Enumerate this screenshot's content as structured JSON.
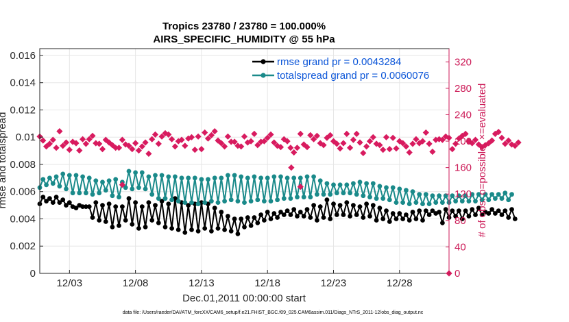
{
  "chart_data": {
    "type": "line",
    "title": "Tropics 23780 / 23780 = 100.000%",
    "subtitle": "AIRS_SPECIFIC_HUMIDITY @ 55 hPa",
    "xlabel": "Dec.01,2011 00:00:00 start",
    "ylabel": "rmse and totalspread",
    "ylabel_right": "# of obs: o=possible; ×=evaluated",
    "footer": "data file: /Users/raeder/DAI/ATM_forcXX/CAM6_setup/f.e21.FHIST_BGC.f09_025.CAM6assim.011/Diags_NTrS_2011-12/obs_diag_output.nc",
    "xlim": [
      0.75,
      31.75
    ],
    "ylim": [
      0,
      0.0165
    ],
    "ylim_right": [
      0,
      340
    ],
    "x_ticks": [
      3,
      8,
      13,
      18,
      23,
      28
    ],
    "x_tick_labels": [
      "12/03",
      "12/08",
      "12/13",
      "12/18",
      "12/23",
      "12/28"
    ],
    "y_ticks": [
      0,
      0.002,
      0.004,
      0.006,
      0.008,
      0.01,
      0.012,
      0.014,
      0.016
    ],
    "y_tick_labels": [
      "0",
      "0.002",
      "0.004",
      "0.006",
      "0.008",
      "0.01",
      "0.012",
      "0.014",
      "0.016"
    ],
    "y_ticks_right": [
      0,
      40,
      80,
      120,
      160,
      200,
      240,
      280,
      320
    ],
    "y_tick_labels_right": [
      "0",
      "40",
      "80",
      "120",
      "160",
      "200",
      "240",
      "280",
      "320"
    ],
    "grid": true,
    "legend": "top-right",
    "series": [
      {
        "name": "rmse grand pr = 0.0043284",
        "color": "#000000",
        "x0": 0.75,
        "dx": 0.25,
        "values": [
          0.0051,
          0.0056,
          0.0053,
          0.0055,
          0.0052,
          0.0056,
          0.0052,
          0.0054,
          0.005,
          0.0052,
          0.0049,
          0.0048,
          0.005,
          0.0049,
          0.0049,
          0.0049,
          0.0041,
          0.0052,
          0.0039,
          0.005,
          0.0038,
          0.0051,
          0.0034,
          0.0049,
          0.0035,
          0.0049,
          0.0039,
          0.0055,
          0.0036,
          0.0052,
          0.0033,
          0.0049,
          0.0034,
          0.0052,
          0.0039,
          0.005,
          0.0037,
          0.0053,
          0.0034,
          0.0051,
          0.0033,
          0.0055,
          0.0032,
          0.0052,
          0.003,
          0.005,
          0.0032,
          0.0051,
          0.0031,
          0.0052,
          0.0033,
          0.0051,
          0.0031,
          0.0048,
          0.0033,
          0.0045,
          0.0032,
          0.0042,
          0.0031,
          0.004,
          0.0029,
          0.004,
          0.0034,
          0.0041,
          0.0035,
          0.0041,
          0.0037,
          0.0043,
          0.0039,
          0.0045,
          0.004,
          0.0044,
          0.0041,
          0.0045,
          0.0043,
          0.0046,
          0.0043,
          0.0047,
          0.0042,
          0.0045,
          0.0042,
          0.0047,
          0.0041,
          0.005,
          0.0039,
          0.0049,
          0.0041,
          0.0054,
          0.004,
          0.0051,
          0.0043,
          0.005,
          0.0043,
          0.0052,
          0.0042,
          0.005,
          0.0043,
          0.0049,
          0.0041,
          0.0051,
          0.0042,
          0.005,
          0.0039,
          0.0048,
          0.004,
          0.0046,
          0.0038,
          0.0044,
          0.004,
          0.0044,
          0.004,
          0.0043,
          0.0039,
          0.0045,
          0.004,
          0.0046,
          0.0039,
          0.0046,
          0.0043,
          0.0046,
          0.0044,
          0.0045,
          0.0037,
          0.0047,
          0.0041,
          0.0046,
          0.0042,
          0.0046,
          0.004,
          0.0046,
          0.0042,
          0.0047,
          0.0043,
          0.0048,
          0.0043,
          0.0045,
          0.0044,
          0.0047,
          0.0044,
          0.0046,
          0.0043,
          0.0046,
          0.0041,
          0.0047,
          0.004
        ]
      },
      {
        "name": "totalspread grand pr = 0.0060076",
        "color": "#1a8a8a",
        "x0": 0.75,
        "dx": 0.25,
        "values": [
          0.0063,
          0.0069,
          0.0065,
          0.007,
          0.0066,
          0.0071,
          0.0064,
          0.0073,
          0.0062,
          0.0072,
          0.0059,
          0.0072,
          0.0059,
          0.0071,
          0.0059,
          0.007,
          0.0058,
          0.0068,
          0.0059,
          0.0067,
          0.0061,
          0.0068,
          0.0057,
          0.0069,
          0.0056,
          0.0067,
          0.0063,
          0.0075,
          0.0062,
          0.0074,
          0.0063,
          0.0074,
          0.0062,
          0.0071,
          0.0058,
          0.0072,
          0.0055,
          0.0072,
          0.0055,
          0.0071,
          0.0054,
          0.0071,
          0.0053,
          0.007,
          0.0052,
          0.007,
          0.0052,
          0.007,
          0.0051,
          0.0069,
          0.0052,
          0.0069,
          0.0053,
          0.007,
          0.0052,
          0.007,
          0.0053,
          0.0072,
          0.0054,
          0.0072,
          0.0053,
          0.0071,
          0.0052,
          0.007,
          0.0053,
          0.0071,
          0.0054,
          0.007,
          0.0053,
          0.007,
          0.0053,
          0.0071,
          0.0054,
          0.0071,
          0.0055,
          0.007,
          0.0055,
          0.007,
          0.0056,
          0.007,
          0.0056,
          0.0071,
          0.0056,
          0.0071,
          0.0058,
          0.0068,
          0.0058,
          0.0066,
          0.0058,
          0.0065,
          0.0059,
          0.0065,
          0.0059,
          0.0065,
          0.0059,
          0.0066,
          0.0058,
          0.0067,
          0.0057,
          0.0066,
          0.0056,
          0.0066,
          0.0055,
          0.0064,
          0.0055,
          0.0063,
          0.0054,
          0.0063,
          0.0052,
          0.0062,
          0.0052,
          0.0061,
          0.0051,
          0.006,
          0.0052,
          0.0058,
          0.0051,
          0.0058,
          0.0051,
          0.0057,
          0.0052,
          0.0057,
          0.0052,
          0.0057,
          0.0052,
          0.0057,
          0.0053,
          0.0057,
          0.0053,
          0.0057,
          0.0053,
          0.0058,
          0.0053,
          0.0058,
          0.0054,
          0.0058,
          0.0054,
          0.0058,
          0.0055,
          0.0058,
          0.0055,
          0.0059,
          0.0054,
          0.0058
        ]
      },
      {
        "name": "# of obs evaluated",
        "axis": "right",
        "color": "#d81b5f",
        "x0": 0.75,
        "dx": 0.25,
        "values": [
          207,
          201,
          192,
          196,
          202,
          190,
          215,
          193,
          198,
          187,
          199,
          197,
          186,
          203,
          196,
          203,
          208,
          197,
          196,
          188,
          202,
          198,
          194,
          190,
          190,
          202,
          195,
          193,
          188,
          197,
          186,
          192,
          198,
          181,
          203,
          210,
          196,
          207,
          212,
          210,
          203,
          192,
          200,
          202,
          193,
          204,
          206,
          187,
          207,
          188,
          213,
          204,
          209,
          215,
          201,
          197,
          192,
          207,
          199,
          199,
          193,
          192,
          207,
          198,
          200,
          211,
          194,
          199,
          200,
          205,
          210,
          198,
          193,
          191,
          203,
          200,
          190,
          183,
          190,
          211,
          195,
          191,
          209,
          203,
          208,
          197,
          194,
          205,
          209,
          200,
          196,
          189,
          197,
          211,
          190,
          202,
          211,
          198,
          182,
          192,
          200,
          206,
          196,
          194,
          187,
          206,
          188,
          205,
          189,
          200,
          197,
          192,
          183,
          196,
          203,
          197,
          200,
          213,
          196,
          184,
          202,
          203,
          202,
          207,
          205,
          188,
          196,
          204,
          208,
          211,
          200,
          197,
          202,
          195,
          191,
          194,
          197,
          201,
          211,
          214,
          205,
          196,
          201,
          195,
          193,
          198
        ],
        "extra_points": [
          [
            7.0,
            134
          ],
          [
            19.8,
            160
          ],
          [
            20.5,
            131
          ],
          [
            31.75,
            0
          ]
        ]
      }
    ]
  }
}
